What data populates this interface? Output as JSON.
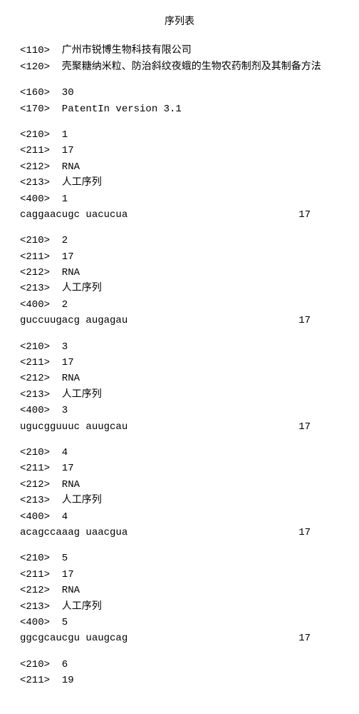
{
  "title": "序列表",
  "h110": "<110>  广州市锐博生物科技有限公司",
  "h120": "<120>  壳聚糖纳米粒、防治斜纹夜蛾的生物农药制剂及其制备方法",
  "h160": "<160>  30",
  "h170": "<170>  PatentIn version 3.1",
  "entries": [
    {
      "n210": "<210>  1",
      "n211": "<211>  17",
      "n212": "<212>  RNA",
      "n213": "<213>  人工序列",
      "n400": "<400>  1",
      "seq": "caggaacugc uacucua",
      "len": "17"
    },
    {
      "n210": "<210>  2",
      "n211": "<211>  17",
      "n212": "<212>  RNA",
      "n213": "<213>  人工序列",
      "n400": "<400>  2",
      "seq": "guccuugacg augagau",
      "len": "17"
    },
    {
      "n210": "<210>  3",
      "n211": "<211>  17",
      "n212": "<212>  RNA",
      "n213": "<213>  人工序列",
      "n400": "<400>  3",
      "seq": "ugucgguuuc auugcau",
      "len": "17"
    },
    {
      "n210": "<210>  4",
      "n211": "<211>  17",
      "n212": "<212>  RNA",
      "n213": "<213>  人工序列",
      "n400": "<400>  4",
      "seq": "acagccaaag uaacgua",
      "len": "17"
    },
    {
      "n210": "<210>  5",
      "n211": "<211>  17",
      "n212": "<212>  RNA",
      "n213": "<213>  人工序列",
      "n400": "<400>  5",
      "seq": "ggcgcaucgu uaugcag",
      "len": "17"
    }
  ],
  "tail": {
    "n210": "<210>  6",
    "n211": "<211>  19"
  }
}
